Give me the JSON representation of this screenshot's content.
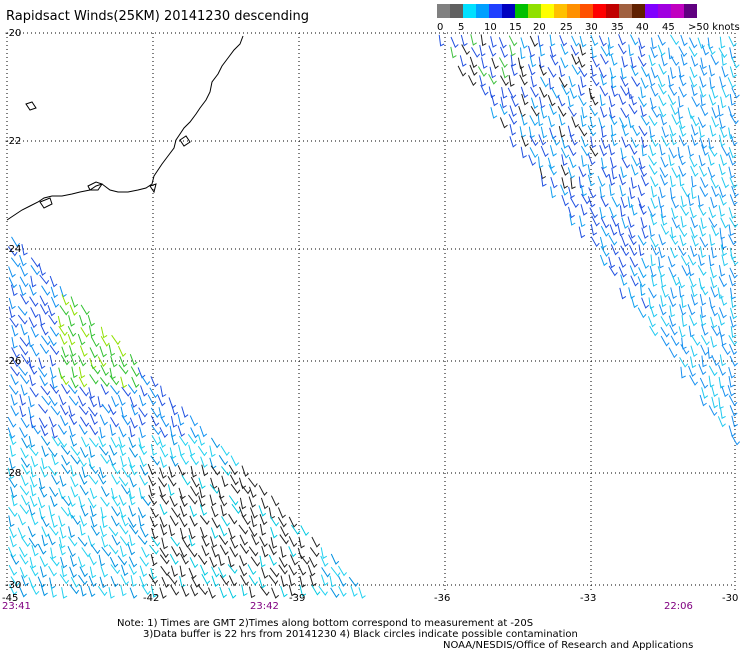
{
  "title": "Rapidsact Winds(25KM) 20141230 descending",
  "legend": {
    "colors": [
      "#808080",
      "#606060",
      "#00e0ff",
      "#00a0ff",
      "#2040ff",
      "#0000c0",
      "#00c000",
      "#90e000",
      "#ffff00",
      "#ffc000",
      "#ff9000",
      "#ff5000",
      "#ff0000",
      "#c00000",
      "#a06040",
      "#602000",
      "#8000ff",
      "#a000e0",
      "#c000c0",
      "#600080"
    ],
    "labels": [
      "0",
      "5",
      "10",
      "15",
      "20",
      "25",
      "30",
      "35",
      "40",
      "45",
      ">50 knots"
    ]
  },
  "lat_labels": [
    "-20",
    "-22",
    "-24",
    "-26",
    "-28",
    "-30"
  ],
  "lon_labels": [
    "-45",
    "-42",
    "-39",
    "-36",
    "-33",
    "-30"
  ],
  "times": [
    "23:41",
    "23:42",
    "22:06"
  ],
  "notes": [
    "Note: 1) Times are GMT 2)Times along bottom correspond to measurement at -20S",
    "3)Data buffer is 22 hrs from 20141230 4) Black circles indicate possible contamination",
    "NOAA/NESDIS/Office of Research and Applications"
  ]
}
